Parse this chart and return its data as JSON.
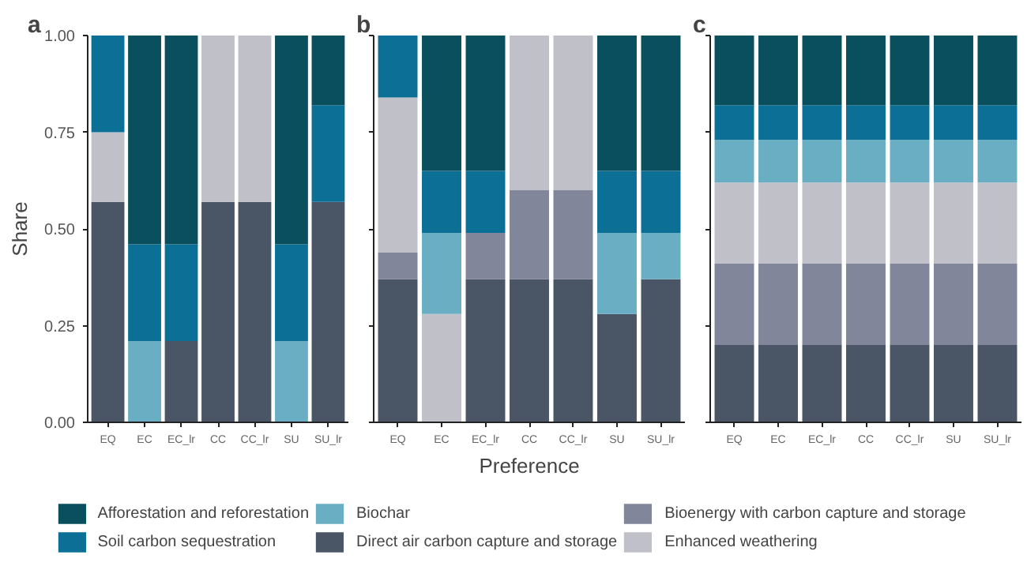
{
  "chart_data": [
    {
      "type": "bar",
      "stacked": true,
      "title": "a",
      "ylabel": "Share",
      "legend": "bottom",
      "categories": [
        "EQ",
        "EC",
        "EC_lr",
        "CC",
        "CC_lr",
        "SU",
        "SU_lr"
      ],
      "ylim": [
        0,
        1
      ],
      "yticks": [
        {
          "value": 0,
          "label": "0.00"
        },
        {
          "value": 0.25,
          "label": "0.25"
        },
        {
          "value": 0.5,
          "label": "0.50"
        },
        {
          "value": 0.75,
          "label": "0.75"
        },
        {
          "value": 1,
          "label": "1.00"
        }
      ],
      "series": [
        {
          "name": "Direct air carbon capture and storage",
          "color": "#4a5566",
          "values": [
            0.57,
            0,
            0.21,
            0.57,
            0.57,
            0,
            0.57
          ]
        },
        {
          "name": "Bioenergy with carbon capture and storage",
          "color": "#82869a",
          "values": [
            0,
            0,
            0,
            0,
            0,
            0,
            0
          ]
        },
        {
          "name": "Enhanced weathering",
          "color": "#bfc0c8",
          "values": [
            0.18,
            0,
            0,
            0.43,
            0.43,
            0,
            0
          ]
        },
        {
          "name": "Biochar",
          "color": "#6aaec4",
          "values": [
            0,
            0.21,
            0,
            0,
            0,
            0.21,
            0
          ]
        },
        {
          "name": "Soil carbon sequestration",
          "color": "#0b6f96",
          "values": [
            0.25,
            0.25,
            0.25,
            0,
            0,
            0.25,
            0.25
          ]
        },
        {
          "name": "Afforestation and reforestation",
          "color": "#0a4f5e",
          "values": [
            0,
            0.54,
            0.54,
            0,
            0,
            0.54,
            0.18
          ]
        }
      ]
    },
    {
      "type": "bar",
      "stacked": true,
      "title": "b",
      "xlabel": "Preference",
      "tick_labels": "x",
      "categories": [
        "EQ",
        "EC",
        "EC_lr",
        "CC",
        "CC_lr",
        "SU",
        "SU_lr"
      ],
      "ylim": [
        0,
        1
      ],
      "yticks": [
        {
          "value": 0,
          "label": null
        },
        {
          "value": 0.25,
          "label": null
        },
        {
          "value": 0.5,
          "label": null
        },
        {
          "value": 0.75,
          "label": null
        },
        {
          "value": 1,
          "label": null
        }
      ],
      "series": [
        {
          "color": "#4a5566",
          "values": [
            0.37,
            0,
            0.37,
            0.37,
            0.37,
            0.28,
            0.37
          ]
        },
        {
          "color": "#82869a",
          "values": [
            0.07,
            0,
            0.12,
            0.23,
            0.23,
            0,
            0
          ]
        },
        {
          "color": "#bfc0c8",
          "values": [
            0.4,
            0.28,
            0,
            0.4,
            0.4,
            0,
            0
          ]
        },
        {
          "color": "#6aaec4",
          "values": [
            0,
            0.21,
            0,
            0,
            0,
            0.21,
            0.12
          ]
        },
        {
          "color": "#0b6f96",
          "values": [
            0.16,
            0.16,
            0.16,
            0,
            0,
            0.16,
            0.16
          ]
        },
        {
          "color": "#0a4f5e",
          "values": [
            0,
            0.35,
            0.35,
            0,
            0,
            0.35,
            0.35
          ]
        }
      ]
    },
    {
      "type": "bar",
      "stacked": true,
      "title": "c",
      "tick_labels": "x",
      "categories": [
        "EQ",
        "EC",
        "EC_lr",
        "CC",
        "CC_lr",
        "SU",
        "SU_lr"
      ],
      "ylim": [
        0,
        1
      ],
      "yticks": [
        {
          "value": 0,
          "label": null
        },
        {
          "value": 0.25,
          "label": null
        },
        {
          "value": 0.5,
          "label": null
        },
        {
          "value": 0.75,
          "label": null
        },
        {
          "value": 1,
          "label": null
        }
      ],
      "series": [
        {
          "color": "#4a5566",
          "values": [
            0.2,
            0.2,
            0.2,
            0.2,
            0.2,
            0.2,
            0.2
          ]
        },
        {
          "color": "#82869a",
          "values": [
            0.21,
            0.21,
            0.21,
            0.21,
            0.21,
            0.21,
            0.21
          ]
        },
        {
          "color": "#bfc0c8",
          "values": [
            0.21,
            0.21,
            0.21,
            0.21,
            0.21,
            0.21,
            0.21
          ]
        },
        {
          "color": "#6aaec4",
          "values": [
            0.11,
            0.11,
            0.11,
            0.11,
            0.11,
            0.11,
            0.11
          ]
        },
        {
          "color": "#0b6f96",
          "values": [
            0.09,
            0.09,
            0.09,
            0.09,
            0.09,
            0.09,
            0.09
          ]
        },
        {
          "color": "#0a4f5e",
          "values": [
            0.18,
            0.18,
            0.18,
            0.18,
            0.18,
            0.18,
            0.18
          ]
        }
      ]
    }
  ]
}
